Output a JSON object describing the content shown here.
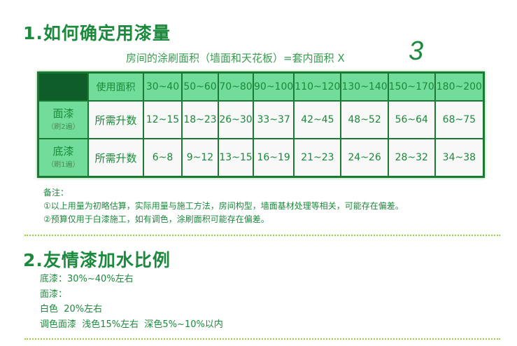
{
  "section1": {
    "title": "1.如何确定用漆量",
    "formula": "房间的涂刷面积（墙面和天花板）=套内面积 X",
    "multiplier": "3"
  },
  "table": {
    "header_label": "使用面积",
    "areas": [
      "30~40",
      "50~60",
      "70~80",
      "90~100",
      "110~120",
      "130~140",
      "150~170",
      "180~200"
    ],
    "rows": [
      {
        "name": "面漆",
        "note": "（刷2遍）",
        "label": "所需升数",
        "values": [
          "12~15",
          "18~23",
          "26~30",
          "33~37",
          "42~45",
          "48~52",
          "56~64",
          "68~75"
        ]
      },
      {
        "name": "底漆",
        "note": "（刷1遍）",
        "label": "所需升数",
        "values": [
          "6~8",
          "9~12",
          "13~15",
          "16~19",
          "21~23",
          "24~26",
          "28~32",
          "34~38"
        ]
      }
    ]
  },
  "notes": {
    "title": "备注：",
    "items": [
      "①以上用量为初略估算，实际用量与施工方法，房间构型，墙面基材处理等相关，可能存在偏差。",
      "②预算仅用于白漆施工，如有调色，涂刷面积可能存在偏差。"
    ]
  },
  "section2": {
    "title": "2.友情漆加水比例",
    "lines": [
      "底漆：30%~40%左右",
      "面漆：",
      "白色  20%左右",
      "调色面漆  浅色15%左右  深色5%~10%以内"
    ]
  }
}
